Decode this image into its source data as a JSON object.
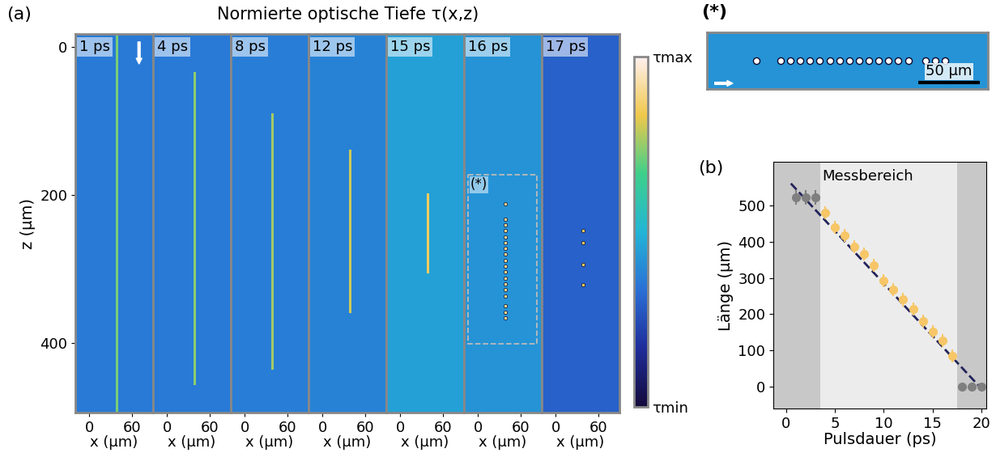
{
  "chart_data": [
    {
      "type": "heatmap",
      "panel_label": "(a)",
      "title": "Normierte optische Tiefe τ(x,z)",
      "xlabel": "x (µm)",
      "ylabel": "z (µm)",
      "xlim": [
        -20,
        90
      ],
      "ylim": [
        494,
        -18
      ],
      "xticks": [
        0,
        60
      ],
      "yticks": [
        0,
        200,
        400
      ],
      "colorbar": {
        "range": [
          0,
          1
        ],
        "ticks": [
          {
            "value": 0,
            "label": "τmin"
          },
          {
            "value": 1,
            "label": "τmax"
          }
        ]
      },
      "frames": [
        {
          "label": "1 ps",
          "tau_background": 0.36,
          "x": 38,
          "filament_z": [
            -18,
            494
          ],
          "filament_tau": 0.72,
          "dots_z": []
        },
        {
          "label": "4 ps",
          "tau_background": 0.36,
          "x": 38,
          "filament_z": [
            35,
            455
          ],
          "filament_tau": 0.74,
          "dots_z": []
        },
        {
          "label": "8 ps",
          "tau_background": 0.37,
          "x": 38,
          "filament_z": [
            90,
            434
          ],
          "filament_tau": 0.76,
          "dots_z": []
        },
        {
          "label": "12 ps",
          "tau_background": 0.38,
          "x": 38,
          "filament_z": [
            139,
            357
          ],
          "filament_tau": 0.8,
          "dots_z": []
        },
        {
          "label": "15 ps",
          "tau_background": 0.45,
          "x": 38,
          "filament_z": [
            199,
            303
          ],
          "filament_tau": 0.85,
          "dots_z": []
        },
        {
          "label": "16 ps",
          "tau_background": 0.42,
          "x": 38,
          "filament_z": null,
          "dots_z": [
            212,
            232,
            240,
            248,
            256,
            264,
            272,
            280,
            288,
            296,
            304,
            312,
            320,
            328,
            336,
            350,
            358,
            366
          ],
          "dots_tau": 0.9
        },
        {
          "label": "17 ps",
          "tau_background": 0.3,
          "x": 38,
          "filament_z": null,
          "dots_z": [
            248,
            264,
            294,
            321
          ],
          "dots_tau": 0.85
        }
      ],
      "zoom_box": {
        "label": "(*)",
        "frame": "16 ps",
        "x": [
          -14,
          83
        ],
        "z": [
          172,
          401
        ]
      }
    },
    {
      "type": "heatmap",
      "panel_label": "(*)",
      "frame": "16 ps",
      "xlim": [
        172,
        401
      ],
      "ylim": [
        14,
        62
      ],
      "tick_labels": false,
      "scale_bar": {
        "length": 50,
        "label": "50 µm"
      }
    },
    {
      "type": "scatter",
      "panel_label": "(b)",
      "xlabel": "Pulsdauer (ps)",
      "ylabel": "Länge (µm)",
      "xlim": [
        -1.3,
        20.5
      ],
      "ylim": [
        -60,
        620
      ],
      "xticks": [
        0,
        5,
        10,
        15,
        20
      ],
      "yticks": [
        0,
        100,
        200,
        300,
        400,
        500
      ],
      "regions": [
        {
          "x": [
            -1.3,
            3.5
          ],
          "color": "#c8c8c8"
        },
        {
          "x": [
            3.5,
            17.5
          ],
          "color": "#ececec",
          "label": "Messbereich"
        },
        {
          "x": [
            17.5,
            20.5
          ],
          "color": "#c8c8c8"
        }
      ],
      "fit": {
        "color": "#23235a",
        "line_style": "dashed",
        "x": [
          0.5,
          20
        ],
        "values": [
          560,
          -5
        ]
      },
      "series": [
        {
          "color": "#7f7f7f",
          "marker": "o",
          "x": [
            1,
            2,
            3
          ],
          "values": [
            522,
            522,
            522
          ],
          "error": [
            20,
            20,
            20
          ]
        },
        {
          "color": "#f6c667",
          "marker": "o",
          "x": [
            4,
            5,
            6,
            7,
            8,
            9,
            10,
            11,
            12,
            13,
            14,
            15,
            16,
            17
          ],
          "values": [
            480,
            440,
            418,
            385,
            365,
            335,
            292,
            268,
            240,
            215,
            180,
            152,
            128,
            85
          ],
          "error": [
            18,
            18,
            18,
            18,
            18,
            18,
            18,
            18,
            18,
            18,
            18,
            18,
            18,
            18
          ]
        },
        {
          "color": "#7f7f7f",
          "marker": "o",
          "x": [
            18,
            19,
            20
          ],
          "values": [
            0,
            0,
            0
          ],
          "error": [
            0,
            0,
            0
          ]
        }
      ]
    }
  ]
}
